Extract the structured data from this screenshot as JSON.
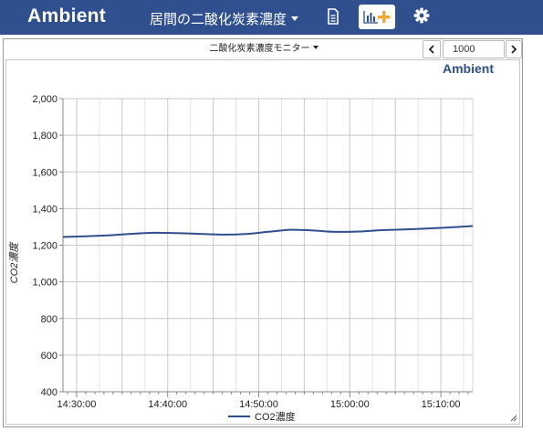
{
  "header": {
    "brand": "Ambient",
    "channel_name": "居間の二酸化炭素濃度",
    "doc_icon": "document-icon",
    "add_chart_icon": "add-chart-icon",
    "settings_icon": "gear-icon",
    "bar_color": "#2f4f8f"
  },
  "panel": {
    "title": "二酸化炭素濃度モニター",
    "count_value": "1000",
    "prev_icon": "chevron-left-icon",
    "next_icon": "chevron-right-icon"
  },
  "chart_data": {
    "type": "line",
    "watermark": "Ambient",
    "ylabel": "CO2濃度",
    "xlabel": "",
    "ylim": [
      400,
      2000
    ],
    "yticks": [
      "400",
      "600",
      "800",
      "1,000",
      "1,200",
      "1,400",
      "1,600",
      "1,800",
      "2,000"
    ],
    "xlim": [
      "14:28:30",
      "15:13:30"
    ],
    "xticks": [
      "14:30:00",
      "14:40:00",
      "14:50:00",
      "15:00:00",
      "15:10:00"
    ],
    "grid": true,
    "legend_position": "bottom",
    "series": [
      {
        "name": "CO2濃度",
        "color": "#2f4f8f",
        "x": [
          "14:28:30",
          "14:31:00",
          "14:33:30",
          "14:36:00",
          "14:38:30",
          "14:41:00",
          "14:43:30",
          "14:46:00",
          "14:48:30",
          "14:51:00",
          "14:53:30",
          "14:56:00",
          "14:58:30",
          "15:01:00",
          "15:03:30",
          "15:06:00",
          "15:08:30",
          "15:11:00",
          "15:13:30"
        ],
        "y": [
          1245,
          1249,
          1254,
          1262,
          1268,
          1266,
          1262,
          1258,
          1261,
          1273,
          1284,
          1280,
          1273,
          1275,
          1282,
          1286,
          1291,
          1297,
          1305
        ]
      }
    ]
  }
}
